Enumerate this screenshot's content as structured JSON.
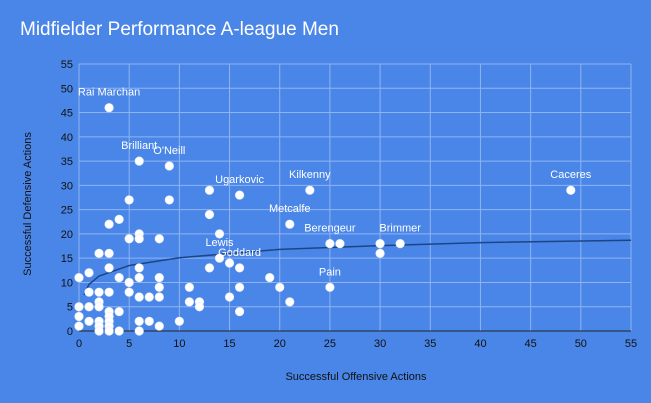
{
  "chart_data": {
    "type": "scatter",
    "title": "Midfielder Performance A-league Men",
    "xlabel": "Successful Offensive Actions",
    "ylabel": "Successful Defensive Actions",
    "xlim": [
      0,
      55
    ],
    "ylim": [
      0,
      55
    ],
    "xticks": [
      "0",
      "5",
      "10",
      "15",
      "20",
      "25",
      "30",
      "35",
      "40",
      "45",
      "50",
      "55"
    ],
    "yticks": [
      "0",
      "5",
      "10",
      "15",
      "20",
      "25",
      "30",
      "35",
      "40",
      "45",
      "50",
      "55"
    ],
    "grid": true,
    "legend": "none",
    "point_color": "#ffffff",
    "trendline": {
      "type": "logarithmic",
      "color": "#1c4587",
      "x": [
        0.5,
        1,
        2,
        5,
        10,
        20,
        30,
        40,
        55
      ],
      "y": [
        7.4,
        9.6,
        11.3,
        13.5,
        15.1,
        16.8,
        17.6,
        18.2,
        18.7
      ]
    },
    "labels": [
      {
        "text": "Rai Marchan",
        "x": 3,
        "y": 46
      },
      {
        "text": "Brilliant",
        "x": 6,
        "y": 35
      },
      {
        "text": "O'Neill",
        "x": 9,
        "y": 34
      },
      {
        "text": "Ugarkovic",
        "x": 16,
        "y": 28
      },
      {
        "text": "Kilkenny",
        "x": 23,
        "y": 29
      },
      {
        "text": "Metcalfe",
        "x": 21,
        "y": 22
      },
      {
        "text": "Berengeur",
        "x": 25,
        "y": 18
      },
      {
        "text": "Brimmer",
        "x": 32,
        "y": 18
      },
      {
        "text": "Caceres",
        "x": 49,
        "y": 29
      },
      {
        "text": "Lewis",
        "x": 14,
        "y": 15
      },
      {
        "text": "Goddard",
        "x": 16,
        "y": 13
      },
      {
        "text": "Pain",
        "x": 25,
        "y": 9
      }
    ],
    "points": [
      [
        3,
        46
      ],
      [
        6,
        35
      ],
      [
        9,
        34
      ],
      [
        9,
        27
      ],
      [
        13,
        29
      ],
      [
        16,
        28
      ],
      [
        23,
        29
      ],
      [
        49,
        29
      ],
      [
        13,
        24
      ],
      [
        21,
        22
      ],
      [
        14,
        20
      ],
      [
        25,
        18
      ],
      [
        26,
        18
      ],
      [
        30,
        18
      ],
      [
        32,
        18
      ],
      [
        30,
        16
      ],
      [
        14,
        15
      ],
      [
        15,
        14
      ],
      [
        16,
        13
      ],
      [
        13,
        13
      ],
      [
        19,
        11
      ],
      [
        20,
        9
      ],
      [
        21,
        6
      ],
      [
        16,
        9
      ],
      [
        25,
        9
      ],
      [
        15,
        7
      ],
      [
        16,
        4
      ],
      [
        11,
        9
      ],
      [
        11,
        6
      ],
      [
        12,
        6
      ],
      [
        12,
        5
      ],
      [
        10,
        2
      ],
      [
        0,
        11
      ],
      [
        0,
        5
      ],
      [
        0,
        3
      ],
      [
        0,
        1
      ],
      [
        1,
        12
      ],
      [
        1,
        8
      ],
      [
        1,
        5
      ],
      [
        1,
        2
      ],
      [
        2,
        16
      ],
      [
        2,
        8
      ],
      [
        2,
        6
      ],
      [
        2,
        5
      ],
      [
        2,
        2
      ],
      [
        2,
        1
      ],
      [
        2,
        0
      ],
      [
        3,
        22
      ],
      [
        3,
        16
      ],
      [
        3,
        13
      ],
      [
        3,
        8
      ],
      [
        3,
        4
      ],
      [
        3,
        3
      ],
      [
        3,
        2
      ],
      [
        3,
        1
      ],
      [
        3,
        0
      ],
      [
        4,
        23
      ],
      [
        4,
        11
      ],
      [
        4,
        4
      ],
      [
        4,
        0
      ],
      [
        5,
        27
      ],
      [
        5,
        19
      ],
      [
        5,
        10
      ],
      [
        5,
        8
      ],
      [
        6,
        20
      ],
      [
        6,
        19
      ],
      [
        6,
        13
      ],
      [
        6,
        11
      ],
      [
        6,
        7
      ],
      [
        6,
        2
      ],
      [
        6,
        0
      ],
      [
        7,
        7
      ],
      [
        7,
        2
      ],
      [
        8,
        19
      ],
      [
        8,
        11
      ],
      [
        8,
        9
      ],
      [
        8,
        7
      ],
      [
        8,
        1
      ]
    ]
  }
}
